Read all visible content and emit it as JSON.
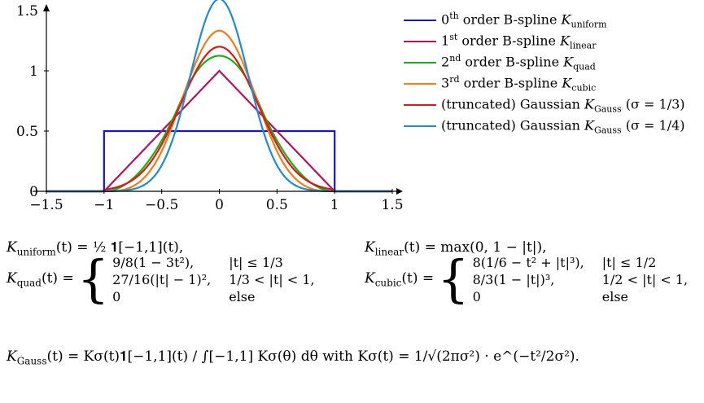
{
  "chart_data": {
    "type": "line",
    "xlim": [
      -1.5,
      1.5
    ],
    "ylim": [
      0,
      1.5
    ],
    "x_ticks": [
      "−1.5",
      "−1",
      "−0.5",
      "0",
      "0.5",
      "1",
      "1.5"
    ],
    "y_ticks": [
      "0",
      "0.5",
      "1",
      "1.5"
    ],
    "grid": false,
    "legend_position": "right",
    "series": [
      {
        "name": "0th order B-spline K_uniform",
        "color": "#1414d2",
        "kind": "uniform"
      },
      {
        "name": "1st order B-spline K_linear",
        "color": "#b4145a",
        "kind": "linear"
      },
      {
        "name": "2nd order B-spline K_quad",
        "color": "#14b414",
        "kind": "quad"
      },
      {
        "name": "3rd order B-spline K_cubic",
        "color": "#ee7d14",
        "kind": "cubic"
      },
      {
        "name": "(truncated) Gaussian K_Gauss (σ = 1/3)",
        "color": "#e61414",
        "kind": "gauss",
        "sigma": 0.3333333
      },
      {
        "name": "(truncated) Gaussian K_Gauss (σ = 1/4)",
        "color": "#1e8cd2",
        "kind": "gauss",
        "sigma": 0.25
      }
    ]
  },
  "legend": [
    {
      "ord": "0",
      "sup": "th",
      "text": " order B-spline ",
      "k": "K",
      "sub": "uniform"
    },
    {
      "ord": "1",
      "sup": "st",
      "text": " order B-spline ",
      "k": "K",
      "sub": "linear"
    },
    {
      "ord": "2",
      "sup": "nd",
      "text": " order B-spline ",
      "k": "K",
      "sub": "quad"
    },
    {
      "ord": "3",
      "sup": "rd",
      "text": " order B-spline ",
      "k": "K",
      "sub": "cubic"
    },
    {
      "ord": "",
      "sup": "",
      "text": "(truncated) Gaussian ",
      "k": "K",
      "sub": "Gauss",
      "tail": "(σ = 1/3)"
    },
    {
      "ord": "",
      "sup": "",
      "text": "(truncated) Gaussian ",
      "k": "K",
      "sub": "Gauss",
      "tail": "(σ = 1/4)"
    }
  ],
  "formulas": {
    "uniform_lhs": "K",
    "uniform_sub": "uniform",
    "uniform_rhs": "(t) = ½ 𝟏[−1,1](t),",
    "linear_lhs": "K",
    "linear_sub": "linear",
    "linear_rhs": "(t) = max(0, 1 − |t|),",
    "quad_lhs": "K",
    "quad_sub": "quad",
    "quad_t": "(t) =",
    "quad_cases": [
      [
        "9/8(1 − 3t²),",
        "|t| ≤ 1/3"
      ],
      [
        "27/16(|t| − 1)²,",
        "1/3 < |t| < 1,"
      ],
      [
        "0",
        "else"
      ]
    ],
    "cubic_lhs": "K",
    "cubic_sub": "cubic",
    "cubic_t": "(t) =",
    "cubic_cases": [
      [
        "8(1/6 − t² + |t|³),",
        "|t| ≤ 1/2"
      ],
      [
        "8/3(1 − |t|)³,",
        "1/2 < |t| < 1,"
      ],
      [
        "0",
        "else"
      ]
    ],
    "gauss_lhs": "K",
    "gauss_sub": "Gauss",
    "gauss_rhs": "(t) = Kσ(t)𝟏[−1,1](t) / ∫[−1,1] Kσ(θ) dθ  with  Kσ(t) = 1/√(2πσ²) · e^(−t²/2σ²)."
  }
}
